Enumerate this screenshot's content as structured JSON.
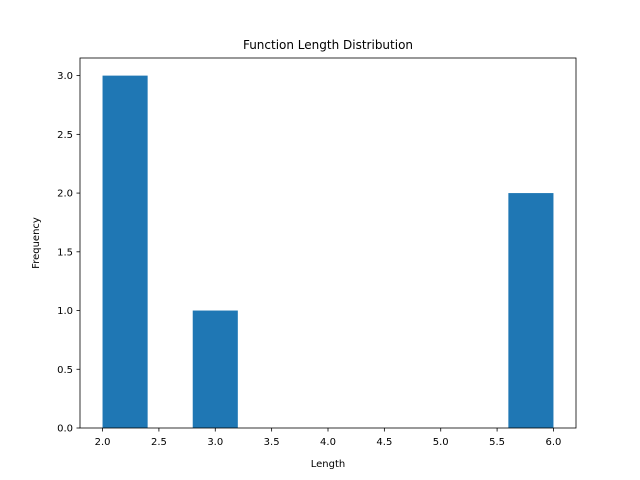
{
  "chart_data": {
    "type": "bar",
    "title": "Function Length Distribution",
    "xlabel": "Length",
    "ylabel": "Frequency",
    "xlim": [
      1.8,
      6.2
    ],
    "ylim": [
      0,
      3.15
    ],
    "xticks": [
      2.0,
      2.5,
      3.0,
      3.5,
      4.0,
      4.5,
      5.0,
      5.5,
      6.0
    ],
    "xtick_labels": [
      "2.0",
      "2.5",
      "3.0",
      "3.5",
      "4.0",
      "4.5",
      "5.0",
      "5.5",
      "6.0"
    ],
    "yticks": [
      0.0,
      0.5,
      1.0,
      1.5,
      2.0,
      2.5,
      3.0
    ],
    "ytick_labels": [
      "0.0",
      "0.5",
      "1.0",
      "1.5",
      "2.0",
      "2.5",
      "3.0"
    ],
    "bins": [
      {
        "x0": 2.0,
        "x1": 2.4,
        "count": 3
      },
      {
        "x0": 2.4,
        "x1": 2.8,
        "count": 0
      },
      {
        "x0": 2.8,
        "x1": 3.2,
        "count": 1
      },
      {
        "x0": 3.2,
        "x1": 3.6,
        "count": 0
      },
      {
        "x0": 3.6,
        "x1": 4.0,
        "count": 0
      },
      {
        "x0": 4.0,
        "x1": 4.4,
        "count": 0
      },
      {
        "x0": 4.4,
        "x1": 4.8,
        "count": 0
      },
      {
        "x0": 4.8,
        "x1": 5.2,
        "count": 0
      },
      {
        "x0": 5.2,
        "x1": 5.6,
        "count": 0
      },
      {
        "x0": 5.6,
        "x1": 6.0,
        "count": 2
      }
    ],
    "bar_color": "#1f77b4",
    "grid": false,
    "legend": "none"
  }
}
